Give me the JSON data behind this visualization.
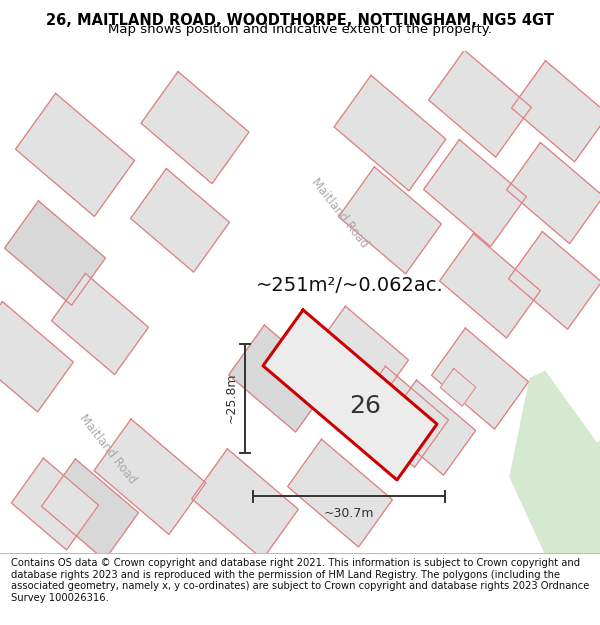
{
  "title_line1": "26, MAITLAND ROAD, WOODTHORPE, NOTTINGHAM, NG5 4GT",
  "title_line2": "Map shows position and indicative extent of the property.",
  "footer_text": "Contains OS data © Crown copyright and database right 2021. This information is subject to Crown copyright and database rights 2023 and is reproduced with the permission of HM Land Registry. The polygons (including the associated geometry, namely x, y co-ordinates) are subject to Crown copyright and database rights 2023 Ordnance Survey 100026316.",
  "area_label": "~251m²/~0.062ac.",
  "number_label": "26",
  "width_label": "~30.7m",
  "height_label": "~25.8m",
  "road_label_left": "Maitland Road",
  "road_label_top": "Maitland Road",
  "map_bg": "#f0f0f0",
  "road_color": "#ffffff",
  "parcel_fill": "#e2e2e2",
  "parcel_edge": "#e08080",
  "highlight_color": "#cc0000",
  "highlight_fill": "#ececec",
  "dim_color": "#333333",
  "green_color": "#d5e8d0",
  "title_fontsize": 10.5,
  "subtitle_fontsize": 9.5,
  "footer_fontsize": 7.2,
  "area_fontsize": 14,
  "number_fontsize": 18,
  "dim_fontsize": 9,
  "road_fontsize": 8.5
}
